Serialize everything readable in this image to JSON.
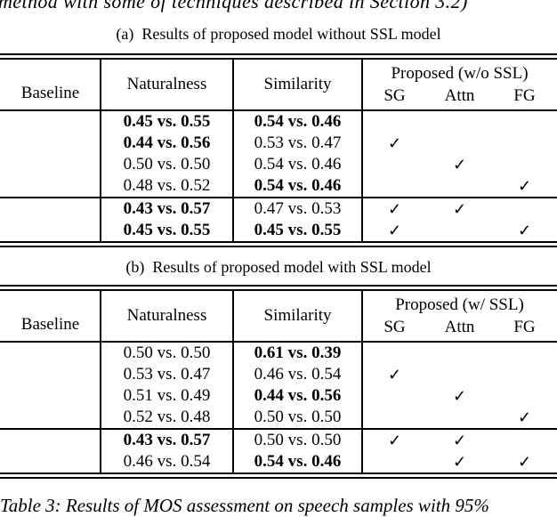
{
  "document": {
    "top_text_clipped": "method with some of techniques described in Section 3.2)",
    "bottom_caption_clipped": "Table 3: Results of MOS assessment on speech samples with 95%",
    "checkmark_glyph": "✓",
    "text_color": "#000000",
    "background_color": "#ffffff"
  },
  "table_a": {
    "caption_label": "(a)",
    "caption_text": "Results of proposed model without SSL model",
    "headers": {
      "baseline": "Baseline",
      "naturalness": "Naturalness",
      "similarity": "Similarity",
      "proposed": "Proposed (w/o SSL)",
      "sg": "SG",
      "attn": "Attn",
      "fg": "FG"
    },
    "groups": [
      {
        "rows": [
          {
            "baseline": "",
            "naturalness": "0.45 vs. 0.55",
            "naturalness_bold": true,
            "similarity": "0.54 vs. 0.46",
            "similarity_bold": true,
            "sg": false,
            "attn": false,
            "fg": false
          },
          {
            "baseline": "",
            "naturalness": "0.44 vs. 0.56",
            "naturalness_bold": true,
            "similarity": "0.53 vs. 0.47",
            "similarity_bold": false,
            "sg": true,
            "attn": false,
            "fg": false
          },
          {
            "baseline": "",
            "naturalness": "0.50 vs. 0.50",
            "naturalness_bold": false,
            "similarity": "0.54 vs. 0.46",
            "similarity_bold": false,
            "sg": false,
            "attn": true,
            "fg": false
          },
          {
            "baseline": "",
            "naturalness": "0.48 vs. 0.52",
            "naturalness_bold": false,
            "similarity": "0.54 vs. 0.46",
            "similarity_bold": true,
            "sg": false,
            "attn": false,
            "fg": true
          }
        ]
      },
      {
        "rows": [
          {
            "baseline": "",
            "naturalness": "0.43 vs. 0.57",
            "naturalness_bold": true,
            "similarity": "0.47 vs. 0.53",
            "similarity_bold": false,
            "sg": true,
            "attn": true,
            "fg": false
          },
          {
            "baseline": "",
            "naturalness": "0.45 vs. 0.55",
            "naturalness_bold": true,
            "similarity": "0.45 vs. 0.55",
            "similarity_bold": true,
            "sg": true,
            "attn": false,
            "fg": true
          }
        ]
      }
    ]
  },
  "table_b": {
    "caption_label": "(b)",
    "caption_text": "Results of proposed model with SSL model",
    "headers": {
      "baseline": "Baseline",
      "naturalness": "Naturalness",
      "similarity": "Similarity",
      "proposed": "Proposed (w/ SSL)",
      "sg": "SG",
      "attn": "Attn",
      "fg": "FG"
    },
    "groups": [
      {
        "rows": [
          {
            "baseline": "",
            "naturalness": "0.50 vs. 0.50",
            "naturalness_bold": false,
            "similarity": "0.61 vs. 0.39",
            "similarity_bold": true,
            "sg": false,
            "attn": false,
            "fg": false
          },
          {
            "baseline": "",
            "naturalness": "0.53 vs. 0.47",
            "naturalness_bold": false,
            "similarity": "0.46 vs. 0.54",
            "similarity_bold": false,
            "sg": true,
            "attn": false,
            "fg": false
          },
          {
            "baseline": "",
            "naturalness": "0.51 vs. 0.49",
            "naturalness_bold": false,
            "similarity": "0.44 vs. 0.56",
            "similarity_bold": true,
            "sg": false,
            "attn": true,
            "fg": false
          },
          {
            "baseline": "",
            "naturalness": "0.52 vs. 0.48",
            "naturalness_bold": false,
            "similarity": "0.50 vs. 0.50",
            "similarity_bold": false,
            "sg": false,
            "attn": false,
            "fg": true
          }
        ]
      },
      {
        "rows": [
          {
            "baseline": "",
            "naturalness": "0.43 vs. 0.57",
            "naturalness_bold": true,
            "similarity": "0.50 vs. 0.50",
            "similarity_bold": false,
            "sg": true,
            "attn": true,
            "fg": false
          },
          {
            "baseline": "",
            "naturalness": "0.46 vs. 0.54",
            "naturalness_bold": false,
            "similarity": "0.54 vs. 0.46",
            "similarity_bold": true,
            "sg": false,
            "attn": true,
            "fg": true
          }
        ]
      }
    ]
  }
}
